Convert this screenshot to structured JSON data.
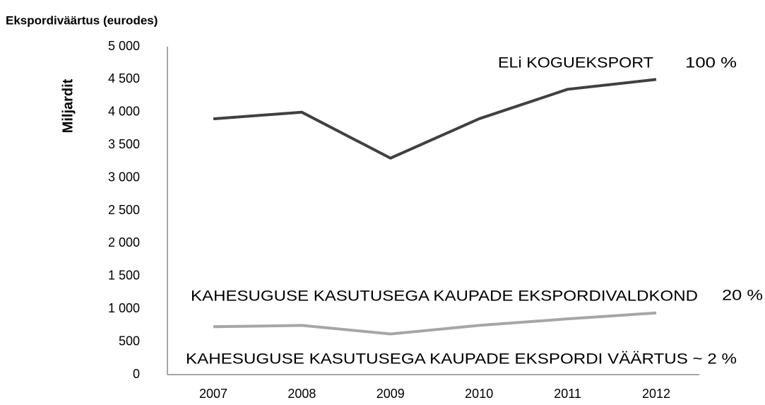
{
  "chart_data": {
    "type": "line",
    "title": "Ekspordiväärtus (eurodes)",
    "y_label": "Miljardit",
    "categories": [
      "2007",
      "2008",
      "2009",
      "2010",
      "2011",
      "2012"
    ],
    "series": [
      {
        "name": "ELi KOGUEKSPORT",
        "color": "#404040",
        "values": [
          3900,
          4000,
          3300,
          3900,
          4350,
          4500
        ]
      },
      {
        "name": "KAHESUGUSE KASUTUSEGA KAUPADE EKSPORDIVALDKOND",
        "color": "#a6a6a6",
        "values": [
          730,
          750,
          620,
          750,
          850,
          940
        ]
      }
    ],
    "annotations": [
      "100 %",
      "20 %",
      "KAHESUGUSE KASUTUSEGA KAUPADE EKSPORDI VÄÄRTUS ~ 2 %"
    ],
    "ylim": [
      0,
      5000
    ],
    "yticks": [
      0,
      500,
      {
        "value": 1000,
        "label": "1 000"
      },
      {
        "value": 1500,
        "label": "1 500"
      },
      {
        "value": 2000,
        "label": "2 000"
      },
      {
        "value": 2500,
        "label": "2 500"
      },
      {
        "value": 3000,
        "label": "3 000"
      },
      {
        "value": 3500,
        "label": "3 500"
      },
      {
        "value": 4000,
        "label": "4 000"
      },
      {
        "value": 4500,
        "label": "4 500"
      },
      {
        "value": 5000,
        "label": "5 000"
      }
    ],
    "grid": false
  }
}
